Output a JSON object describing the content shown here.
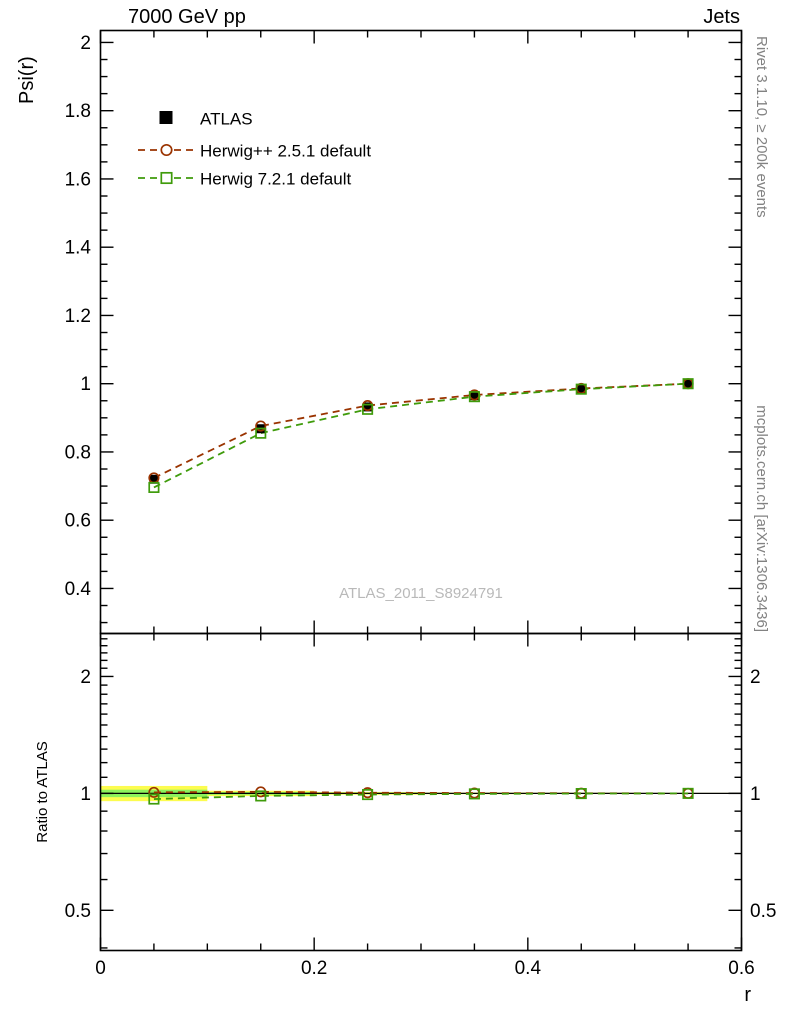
{
  "header": {
    "left": "7000 GeV pp",
    "right": "Jets"
  },
  "side_labels": {
    "rivet": "Rivet 3.1.10, ≥ 200k events",
    "mcplots": "mcplots.cern.ch [arXiv:1306.3436]"
  },
  "watermark": "ATLAS_2011_S8924791",
  "chart_data": {
    "type": "line",
    "title": "",
    "xlabel": "r",
    "ylabel": "Psi(r)",
    "ratio_ylabel": "Ratio to ATLAS",
    "xlim": [
      0,
      0.6
    ],
    "x": [
      0.05,
      0.15,
      0.25,
      0.35,
      0.45,
      0.55
    ],
    "xticks": [
      0,
      0.2,
      0.4,
      0.6
    ],
    "xtick_labels": [
      "0",
      "0.2",
      "0.4",
      "0.6"
    ],
    "x_minor_step": 0.05,
    "main_ylim": [
      0.268,
      2.035
    ],
    "main_yticks": [
      0.4,
      0.6,
      0.8,
      1,
      1.2,
      1.4,
      1.6,
      1.8,
      2
    ],
    "main_ytick_labels": [
      "0.4",
      "0.6",
      "0.8",
      "1",
      "1.2",
      "1.4",
      "1.6",
      "1.8",
      "2"
    ],
    "main_y_minor_step": 0.05,
    "ratio_scale": "log",
    "ratio_ylim": [
      0.394,
      2.58
    ],
    "ratio_yticks": [
      0.5,
      1,
      2
    ],
    "ratio_ytick_labels": [
      "0.5",
      "1",
      "2"
    ],
    "ratio_minor_ticks": [
      0.4,
      0.6,
      0.7,
      0.8,
      0.9,
      1.1,
      1.2,
      1.3,
      1.4,
      1.5,
      1.6,
      1.7,
      1.8,
      1.9,
      2.1,
      2.2,
      2.3,
      2.4,
      2.5
    ],
    "series": [
      {
        "name": "ATLAS",
        "role": "data",
        "color": "#000000",
        "marker": "square-filled",
        "values": [
          0.72,
          0.868,
          0.932,
          0.965,
          0.985,
          1.0
        ],
        "errors": [
          0.01,
          0.007,
          0.005,
          0.004,
          0.003,
          0.002
        ]
      },
      {
        "name": "Herwig++ 2.5.1 default",
        "role": "mc",
        "color": "#9a3300",
        "marker": "circle-open",
        "linestyle": "dashed",
        "values": [
          0.724,
          0.876,
          0.936,
          0.967,
          0.986,
          1.0
        ],
        "ratio": [
          1.006,
          1.009,
          1.004,
          1.002,
          1.001,
          1.0
        ]
      },
      {
        "name": "Herwig 7.2.1 default",
        "role": "mc",
        "color": "#3f9b0b",
        "marker": "square-open",
        "linestyle": "dashed",
        "values": [
          0.696,
          0.855,
          0.925,
          0.962,
          0.984,
          1.0
        ],
        "ratio": [
          0.967,
          0.985,
          0.993,
          0.997,
          0.999,
          1.0
        ]
      }
    ],
    "ratio_band": {
      "bin_edges": [
        0,
        0.1,
        0.2,
        0.3,
        0.4,
        0.5,
        0.6
      ],
      "yellow_halfwidth": [
        0.045,
        0.016,
        0.008,
        0.005,
        0.004,
        0.003
      ],
      "green_halfwidth": [
        0.022,
        0.008,
        0.004,
        0.0025,
        0.002,
        0.0015
      ],
      "yellow_color": "#fcfc4f",
      "green_color": "#8df25c"
    }
  }
}
